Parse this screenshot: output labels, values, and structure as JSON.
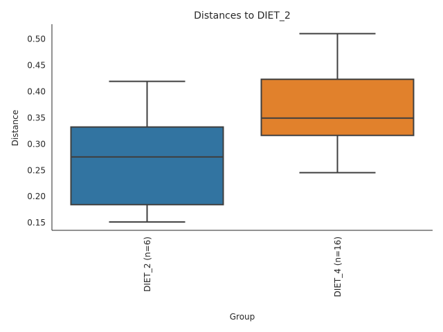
{
  "chart_data": {
    "type": "boxplot",
    "title": "Distances to DIET_2",
    "xlabel": "Group",
    "ylabel": "Distance",
    "ylim": [
      0.135,
      0.528
    ],
    "yticks": [
      0.15,
      0.2,
      0.25,
      0.3,
      0.35,
      0.4,
      0.45,
      0.5
    ],
    "ytick_labels": [
      "0.15",
      "0.20",
      "0.25",
      "0.30",
      "0.35",
      "0.40",
      "0.45",
      "0.50"
    ],
    "grid": false,
    "categories": [
      "DIET_2 (n=6)",
      "DIET_4 (n=16)"
    ],
    "boxes": [
      {
        "category": "DIET_2 (n=6)",
        "whisker_low": 0.151,
        "q1": 0.184,
        "median": 0.275,
        "q3": 0.332,
        "whisker_high": 0.419,
        "color": "#3274a1"
      },
      {
        "category": "DIET_4 (n=16)",
        "whisker_low": 0.245,
        "q1": 0.316,
        "median": 0.349,
        "q3": 0.423,
        "whisker_high": 0.51,
        "color": "#e1812c"
      }
    ]
  }
}
